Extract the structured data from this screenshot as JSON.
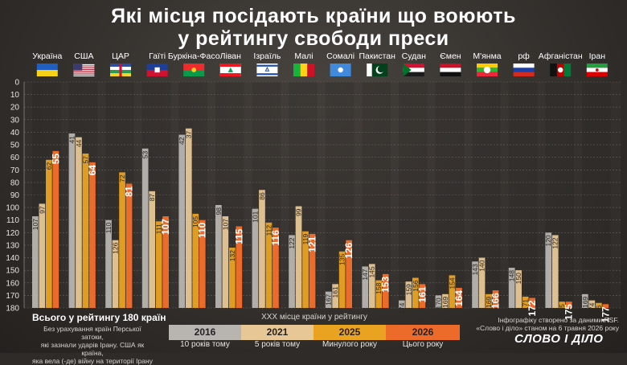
{
  "title_line1": "Які місця посідають країни що воюють",
  "title_line2": "у рейтингу свободи преси",
  "total_note": "Всього у рейтингу 180 країн",
  "footnote_lines": [
    "Без урахування країн Перської затоки,",
    "які зазнали ударів Ірану. США як країна,",
    "яка вела (-де) війну на території Ірану"
  ],
  "legend_caption": "XXX місце країни у рейтингу",
  "legend": [
    {
      "year": "2016",
      "desc": "10 років тому",
      "color": "#b8b5b1"
    },
    {
      "year": "2021",
      "desc": "5 років тому",
      "color": "#e7c796"
    },
    {
      "year": "2025",
      "desc": "Минулого року",
      "color": "#eaa321"
    },
    {
      "year": "2026",
      "desc": "Цього року",
      "color": "#ec6a2a"
    }
  ],
  "source_lines": [
    "Інфографіку створено за даними RSF.",
    "«Слово і діло» станом на 6 травня 2026 року"
  ],
  "logo": "СЛОВО І ДІЛО",
  "chart_data": {
    "type": "bar",
    "ylim": [
      0,
      180
    ],
    "y_ticks": [
      0,
      10,
      20,
      30,
      40,
      50,
      60,
      70,
      80,
      90,
      100,
      110,
      120,
      130,
      140,
      150,
      160,
      170,
      180
    ],
    "y_inverted": true,
    "categories": [
      "Україна",
      "США",
      "ЦАР",
      "Гаїті",
      "Буркіна-Фасо",
      "Ліван",
      "Ізраїль",
      "Малі",
      "Сомалі",
      "Пакистан",
      "Судан",
      "Ємен",
      "М'янма",
      "рф",
      "Афганістан",
      "Іран"
    ],
    "flag_icons": [
      "ukraine-flag-icon",
      "usa-flag-icon",
      "car-flag-icon",
      "haiti-flag-icon",
      "burkina-faso-flag-icon",
      "lebanon-flag-icon",
      "israel-flag-icon",
      "mali-flag-icon",
      "somalia-flag-icon",
      "pakistan-flag-icon",
      "sudan-flag-icon",
      "yemen-flag-icon",
      "myanmar-flag-icon",
      "russia-flag-icon",
      "afghanistan-flag-icon",
      "iran-flag-icon"
    ],
    "series": [
      {
        "name": "2016",
        "values": [
          107,
          41,
          110,
          53,
          42,
          98,
          101,
          122,
          167,
          147,
          174,
          170,
          143,
          148,
          120,
          169
        ]
      },
      {
        "name": "2021",
        "values": [
          97,
          44,
          126,
          87,
          37,
          107,
          86,
          99,
          161,
          145,
          159,
          169,
          140,
          150,
          122,
          174
        ]
      },
      {
        "name": "2025",
        "values": [
          62,
          57,
          72,
          111,
          105,
          132,
          112,
          119,
          135,
          158,
          156,
          154,
          169,
          171,
          175,
          176
        ]
      },
      {
        "name": "2026",
        "values": [
          55,
          64,
          81,
          107,
          110,
          115,
          116,
          121,
          126,
          153,
          161,
          164,
          166,
          172,
          175,
          177
        ]
      }
    ]
  }
}
